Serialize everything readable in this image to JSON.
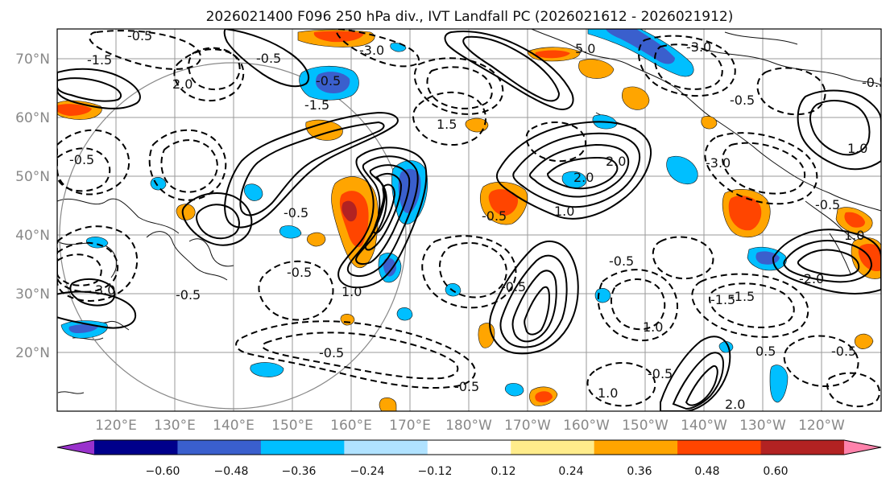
{
  "title": "2026021400 F096 250 hPa div., IVT Landfall PC (2026021612 - 2026021912)",
  "axes": {
    "lon_labels": [
      "120°E",
      "130°E",
      "140°E",
      "150°E",
      "160°E",
      "170°E",
      "180°W",
      "170°W",
      "160°W",
      "150°W",
      "140°W",
      "130°W",
      "120°W"
    ],
    "lat_labels": [
      "70°N",
      "60°N",
      "50°N",
      "40°N",
      "30°N",
      "20°N"
    ]
  },
  "colorbar": {
    "ticks": [
      "−0.60",
      "−0.48",
      "−0.36",
      "−0.24",
      "−0.12",
      "0.12",
      "0.24",
      "0.36",
      "0.48",
      "0.60"
    ],
    "colors": [
      "#9932cc",
      "#00008b",
      "#3a5fcd",
      "#00bfff",
      "#b0e2ff",
      "#ffffff",
      "#ffec8b",
      "#ffa500",
      "#ff4500",
      "#b22222",
      "#ff82ab"
    ]
  },
  "fill_colors": {
    "neg_strong": "#3a5fcd",
    "neg_mid": "#00bfff",
    "neg_weak": "#b0e2ff",
    "pos_weak": "#ffec8b",
    "pos_mid": "#ffa500",
    "pos_strong": "#ff4500",
    "pos_max": "#b22222"
  },
  "contour_labels": [
    "-0.5",
    "-0.5",
    "-1.5",
    "-3.0",
    "5.0",
    "-3.0",
    "-0.5",
    "2.0",
    "-1.5",
    "-0.5",
    "1.5",
    "-0.5",
    "2.0",
    "-0.5",
    "1.0",
    "-3.0",
    "-0.5",
    "2.0",
    "1.0",
    "-0.5",
    "-0.5",
    "1.0",
    "-0.5",
    "-0.5",
    "-0.5",
    "3.0",
    "-0.5",
    "1.0",
    "-1.5",
    "-2.0",
    "1.0",
    "-0.5",
    "0.5",
    "-0.5",
    "-1.5",
    "-0.5",
    "1.0",
    "2.0",
    "-0.5"
  ]
}
